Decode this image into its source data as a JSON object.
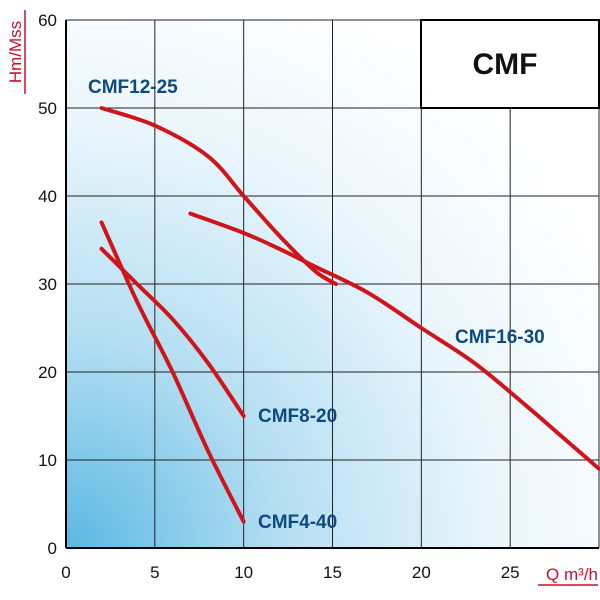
{
  "chart_data": {
    "type": "line",
    "title": "CMF",
    "xlabel": "Q m³/h",
    "ylabel": "Hm/Mss",
    "xlim": [
      0,
      30
    ],
    "ylim": [
      0,
      60
    ],
    "xticks": [
      0,
      5,
      10,
      15,
      20,
      25
    ],
    "yticks": [
      0,
      10,
      20,
      30,
      40,
      50,
      60
    ],
    "grid": true,
    "series": [
      {
        "name": "CMF12-25",
        "color": "#d0141c",
        "points": [
          [
            2,
            50
          ],
          [
            5,
            48
          ],
          [
            8,
            44.5
          ],
          [
            10,
            40
          ],
          [
            12,
            35.5
          ],
          [
            14,
            31.5
          ],
          [
            15.2,
            30
          ]
        ],
        "label_near": "start"
      },
      {
        "name": "CMF16-30",
        "color": "#d0141c",
        "points": [
          [
            7,
            38
          ],
          [
            10,
            35.8
          ],
          [
            12,
            34
          ],
          [
            14,
            32
          ],
          [
            17,
            29
          ],
          [
            20,
            25
          ],
          [
            23,
            21
          ],
          [
            26,
            16
          ],
          [
            28,
            12.5
          ],
          [
            30,
            9
          ]
        ],
        "label_near": "middle"
      },
      {
        "name": "CMF8-20",
        "color": "#d0141c",
        "points": [
          [
            2,
            34
          ],
          [
            4,
            30
          ],
          [
            6,
            26
          ],
          [
            8,
            21
          ],
          [
            10,
            15
          ]
        ],
        "label_near": "end"
      },
      {
        "name": "CMF4-40",
        "color": "#d0141c",
        "points": [
          [
            2,
            37
          ],
          [
            4,
            28
          ],
          [
            6,
            20
          ],
          [
            8,
            11
          ],
          [
            10,
            3
          ]
        ],
        "label_near": "end"
      }
    ]
  }
}
